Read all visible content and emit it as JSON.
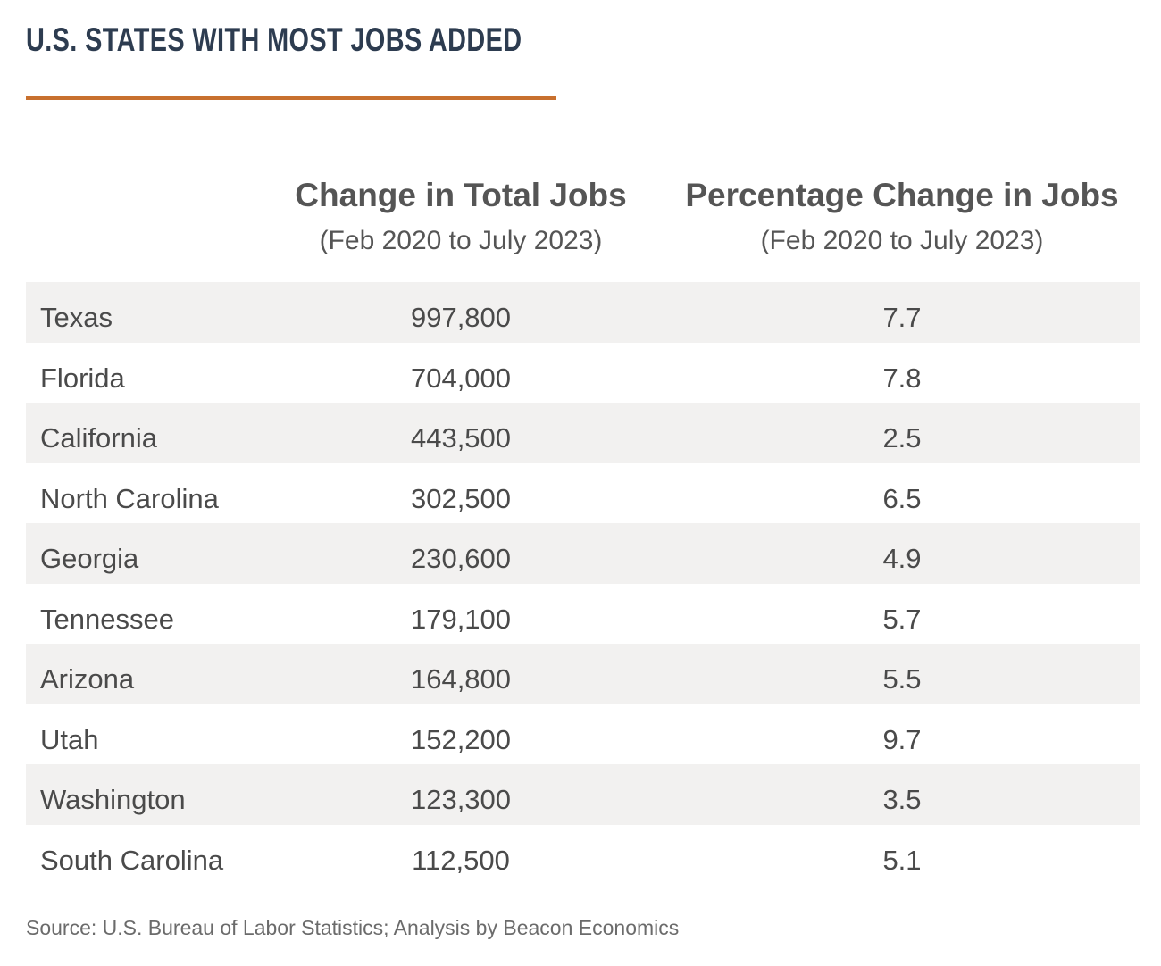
{
  "title": "U.S. STATES WITH MOST JOBS ADDED",
  "columns": {
    "jobs": {
      "label": "Change in Total Jobs",
      "period": "(Feb 2020 to July 2023)"
    },
    "pct": {
      "label": "Percentage Change in Jobs",
      "period": "(Feb 2020 to July 2023)"
    }
  },
  "source": "Source: U.S. Bureau of Labor Statistics; Analysis by Beacon Economics",
  "chart_data": {
    "type": "table",
    "title": "U.S. STATES WITH MOST JOBS ADDED",
    "columns": [
      "Change in Total Jobs (Feb 2020 to July 2023)",
      "Percentage Change in Jobs (Feb 2020 to July 2023)"
    ],
    "rows": [
      {
        "state": "Texas",
        "jobs": "997,800",
        "pct": "7.7"
      },
      {
        "state": "Florida",
        "jobs": "704,000",
        "pct": "7.8"
      },
      {
        "state": "California",
        "jobs": "443,500",
        "pct": "2.5"
      },
      {
        "state": "North Carolina",
        "jobs": "302,500",
        "pct": "6.5"
      },
      {
        "state": "Georgia",
        "jobs": "230,600",
        "pct": "4.9"
      },
      {
        "state": "Tennessee",
        "jobs": "179,100",
        "pct": "5.7"
      },
      {
        "state": "Arizona",
        "jobs": "164,800",
        "pct": "5.5"
      },
      {
        "state": "Utah",
        "jobs": "152,200",
        "pct": "9.7"
      },
      {
        "state": "Washington",
        "jobs": "123,300",
        "pct": "3.5"
      },
      {
        "state": "South Carolina",
        "jobs": "112,500",
        "pct": "5.1"
      }
    ]
  },
  "colors": {
    "title": "#2d3c50",
    "accent_rule": "#c8702e",
    "row_shade": "#f2f1f0",
    "text": "#4a4a4a"
  }
}
